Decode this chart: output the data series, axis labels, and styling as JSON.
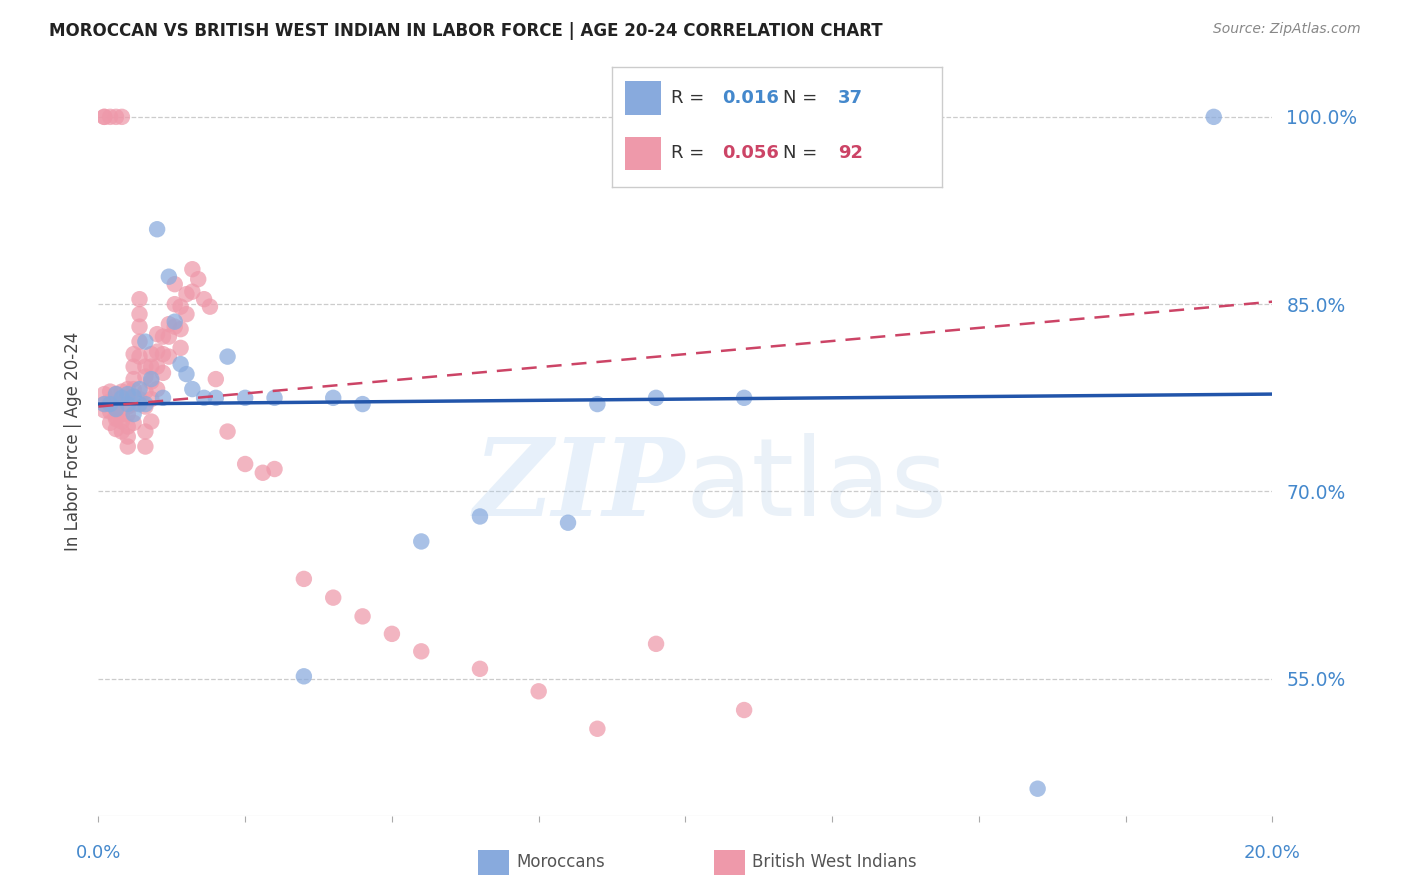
{
  "title": "MOROCCAN VS BRITISH WEST INDIAN IN LABOR FORCE | AGE 20-24 CORRELATION CHART",
  "source": "Source: ZipAtlas.com",
  "ylabel": "In Labor Force | Age 20-24",
  "blue_R": "0.016",
  "blue_N": "37",
  "pink_R": "0.056",
  "pink_N": "92",
  "blue_color": "#88AADD",
  "pink_color": "#EE99AA",
  "blue_line_color": "#2255AA",
  "pink_line_color": "#CC4466",
  "grid_color": "#CCCCCC",
  "axis_color": "#4488CC",
  "xmin": 0.0,
  "xmax": 0.2,
  "ymin": 0.44,
  "ymax": 1.04,
  "ytick_vals": [
    0.55,
    0.7,
    0.85,
    1.0
  ],
  "ytick_labels": [
    "55.0%",
    "70.0%",
    "85.0%",
    "100.0%"
  ],
  "blue_trend_x0": 0.0,
  "blue_trend_y0": 0.77,
  "blue_trend_x1": 0.2,
  "blue_trend_y1": 0.778,
  "pink_trend_x0": 0.0,
  "pink_trend_y0": 0.768,
  "pink_trend_x1": 0.2,
  "pink_trend_y1": 0.852,
  "blue_x": [
    0.001,
    0.002,
    0.003,
    0.003,
    0.004,
    0.005,
    0.005,
    0.006,
    0.006,
    0.007,
    0.007,
    0.008,
    0.008,
    0.009,
    0.01,
    0.011,
    0.012,
    0.013,
    0.014,
    0.015,
    0.016,
    0.018,
    0.02,
    0.022,
    0.025,
    0.03,
    0.04,
    0.055,
    0.08,
    0.095,
    0.11,
    0.16,
    0.19,
    0.085,
    0.045,
    0.035,
    0.065
  ],
  "blue_y": [
    0.77,
    0.77,
    0.778,
    0.766,
    0.775,
    0.778,
    0.77,
    0.776,
    0.762,
    0.782,
    0.77,
    0.82,
    0.77,
    0.79,
    0.91,
    0.775,
    0.872,
    0.836,
    0.802,
    0.794,
    0.782,
    0.775,
    0.775,
    0.808,
    0.775,
    0.775,
    0.775,
    0.66,
    0.675,
    0.775,
    0.775,
    0.462,
    1.0,
    0.77,
    0.77,
    0.552,
    0.68
  ],
  "pink_x": [
    0.001,
    0.001,
    0.001,
    0.001,
    0.001,
    0.002,
    0.002,
    0.002,
    0.002,
    0.002,
    0.002,
    0.003,
    0.003,
    0.003,
    0.003,
    0.003,
    0.003,
    0.003,
    0.004,
    0.004,
    0.004,
    0.004,
    0.004,
    0.004,
    0.005,
    0.005,
    0.005,
    0.005,
    0.005,
    0.005,
    0.005,
    0.006,
    0.006,
    0.006,
    0.006,
    0.006,
    0.006,
    0.007,
    0.007,
    0.007,
    0.007,
    0.007,
    0.007,
    0.008,
    0.008,
    0.008,
    0.008,
    0.008,
    0.008,
    0.009,
    0.009,
    0.009,
    0.009,
    0.009,
    0.01,
    0.01,
    0.01,
    0.01,
    0.011,
    0.011,
    0.011,
    0.012,
    0.012,
    0.012,
    0.013,
    0.013,
    0.013,
    0.014,
    0.014,
    0.014,
    0.015,
    0.015,
    0.016,
    0.016,
    0.017,
    0.018,
    0.019,
    0.02,
    0.022,
    0.025,
    0.028,
    0.03,
    0.035,
    0.04,
    0.045,
    0.05,
    0.055,
    0.065,
    0.075,
    0.085,
    0.095,
    0.11
  ],
  "pink_y": [
    0.778,
    0.765,
    1.0,
    0.77,
    1.0,
    0.78,
    0.772,
    0.764,
    1.0,
    0.77,
    0.755,
    0.778,
    0.77,
    0.758,
    0.766,
    1.0,
    0.75,
    0.76,
    0.78,
    0.77,
    0.762,
    1.0,
    0.756,
    0.748,
    0.782,
    0.776,
    0.768,
    0.762,
    0.752,
    0.744,
    0.736,
    0.81,
    0.8,
    0.79,
    0.782,
    0.77,
    0.755,
    0.854,
    0.842,
    0.832,
    0.82,
    0.808,
    0.774,
    0.8,
    0.792,
    0.78,
    0.768,
    0.748,
    0.736,
    0.81,
    0.8,
    0.788,
    0.774,
    0.756,
    0.826,
    0.812,
    0.8,
    0.782,
    0.824,
    0.81,
    0.795,
    0.834,
    0.824,
    0.808,
    0.866,
    0.85,
    0.832,
    0.848,
    0.83,
    0.815,
    0.858,
    0.842,
    0.878,
    0.86,
    0.87,
    0.854,
    0.848,
    0.79,
    0.748,
    0.722,
    0.715,
    0.718,
    0.63,
    0.615,
    0.6,
    0.586,
    0.572,
    0.558,
    0.54,
    0.51,
    0.578,
    0.525
  ]
}
